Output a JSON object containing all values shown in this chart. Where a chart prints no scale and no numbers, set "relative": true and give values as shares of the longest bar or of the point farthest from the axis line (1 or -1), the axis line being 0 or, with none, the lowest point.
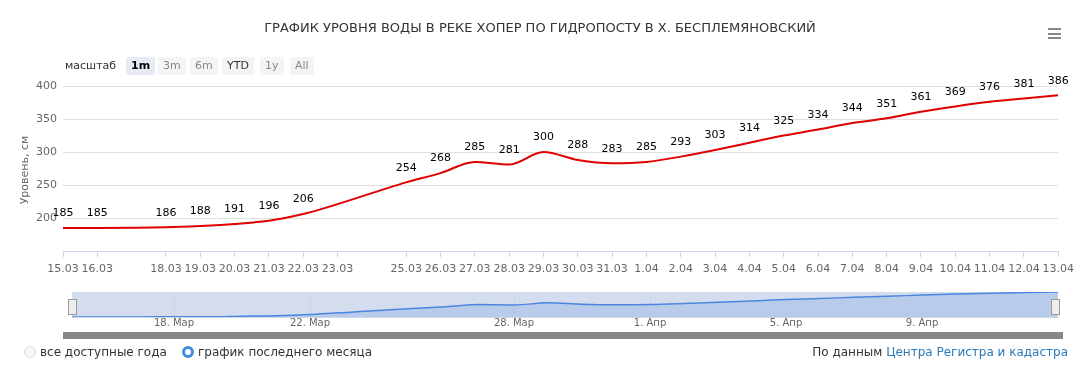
{
  "chart_data": [
    {
      "type": "line",
      "title": "ГРАФИК УРОВНЯ ВОДЫ В РЕКЕ ХОПЕР ПО ГИДРОПОСТУ В Х. БЕСПЛЕМЯНОВСКИЙ",
      "ylabel": "Уровень, см",
      "x": [
        "--03-15",
        "--03-16",
        "--03-18",
        "--03-19",
        "--03-20",
        "--03-21",
        "--03-22",
        "--03-25",
        "--03-26",
        "--03-27",
        "--03-28",
        "--03-29",
        "--03-30",
        "--03-31",
        "--04-01",
        "--04-02",
        "--04-03",
        "--04-04",
        "--04-05",
        "--04-06",
        "--04-07",
        "--04-08",
        "--04-09",
        "--04-10",
        "--04-11",
        "--04-12",
        "--04-13"
      ],
      "series": [
        {
          "color": "#e00000",
          "values": [
            185,
            185,
            186,
            188,
            191,
            196,
            206,
            254,
            268,
            285,
            281,
            300,
            288,
            283,
            285,
            293,
            303,
            314,
            325,
            334,
            344,
            351,
            361,
            369,
            376,
            381,
            386
          ]
        }
      ],
      "xlim": [
        "--03-15",
        "--04-13"
      ],
      "xticks": [
        {
          "value": "--03-15",
          "label": "15.03"
        },
        {
          "value": "--03-16",
          "label": "16.03"
        },
        {
          "value": "--03-18",
          "label": "18.03"
        },
        {
          "value": "--03-19",
          "label": "19.03"
        },
        {
          "value": "--03-20",
          "label": "20.03"
        },
        {
          "value": "--03-21",
          "label": "21.03"
        },
        {
          "value": "--03-22",
          "label": "22.03"
        },
        {
          "value": "--03-23",
          "label": "23.03"
        },
        {
          "value": "--03-25",
          "label": "25.03"
        },
        {
          "value": "--03-26",
          "label": "26.03"
        },
        {
          "value": "--03-27",
          "label": "27.03"
        },
        {
          "value": "--03-28",
          "label": "28.03"
        },
        {
          "value": "--03-29",
          "label": "29.03"
        },
        {
          "value": "--03-30",
          "label": "30.03"
        },
        {
          "value": "--03-31",
          "label": "31.03"
        },
        {
          "value": "--04-01",
          "label": "1.04"
        },
        {
          "value": "--04-02",
          "label": "2.04"
        },
        {
          "value": "--04-03",
          "label": "3.04"
        },
        {
          "value": "--04-04",
          "label": "4.04"
        },
        {
          "value": "--04-05",
          "label": "5.04"
        },
        {
          "value": "--04-06",
          "label": "6.04"
        },
        {
          "value": "--04-07",
          "label": "7.04"
        },
        {
          "value": "--04-08",
          "label": "8.04"
        },
        {
          "value": "--04-09",
          "label": "9.04"
        },
        {
          "value": "--04-10",
          "label": "10.04"
        },
        {
          "value": "--04-11",
          "label": "11.04"
        },
        {
          "value": "--04-12",
          "label": "12.04"
        },
        {
          "value": "--04-13",
          "label": "13.04"
        }
      ],
      "ylim": [
        150,
        400
      ],
      "yticks": [
        200,
        250,
        300,
        350,
        400
      ],
      "grid": "y",
      "legend": false,
      "marker": "none",
      "data_labels": true,
      "annotations": [
        "масштаб",
        "1m",
        "3m",
        "6m",
        "YTD",
        "1y",
        "All",
        "все доступные года",
        "график последнего месяца",
        "По данным",
        "Центра Регистра и кадастра"
      ]
    },
    {
      "type": "area",
      "relative": true,
      "x": [
        "--03-15",
        "--03-16",
        "--03-18",
        "--03-19",
        "--03-20",
        "--03-21",
        "--03-22",
        "--03-25",
        "--03-26",
        "--03-27",
        "--03-28",
        "--03-29",
        "--03-30",
        "--03-31",
        "--04-01",
        "--04-02",
        "--04-03",
        "--04-04",
        "--04-05",
        "--04-06",
        "--04-07",
        "--04-08",
        "--04-09",
        "--04-10",
        "--04-11",
        "--04-12",
        "--04-13"
      ],
      "series": [
        {
          "color": "#4a86e0",
          "values": [
            0,
            0,
            0.01,
            0.01,
            0.03,
            0.05,
            0.1,
            0.34,
            0.41,
            0.5,
            0.48,
            0.57,
            0.51,
            0.49,
            0.5,
            0.54,
            0.59,
            0.64,
            0.7,
            0.74,
            0.79,
            0.83,
            0.88,
            0.92,
            0.95,
            0.98,
            1
          ]
        }
      ],
      "xlim": [
        "--03-15",
        "--04-13"
      ],
      "xticks": [
        {
          "value": "--03-18",
          "label": "18. Мар"
        },
        {
          "value": "--03-22",
          "label": "22. Мар"
        },
        {
          "value": "--03-28",
          "label": "28. Мар"
        },
        {
          "value": "--04-01",
          "label": "1. Апр"
        },
        {
          "value": "--04-05",
          "label": "5. Апр"
        },
        {
          "value": "--04-09",
          "label": "9. Апр"
        }
      ],
      "grid": "x",
      "tick_labels": "x",
      "legend": false,
      "marker": "none"
    }
  ]
}
